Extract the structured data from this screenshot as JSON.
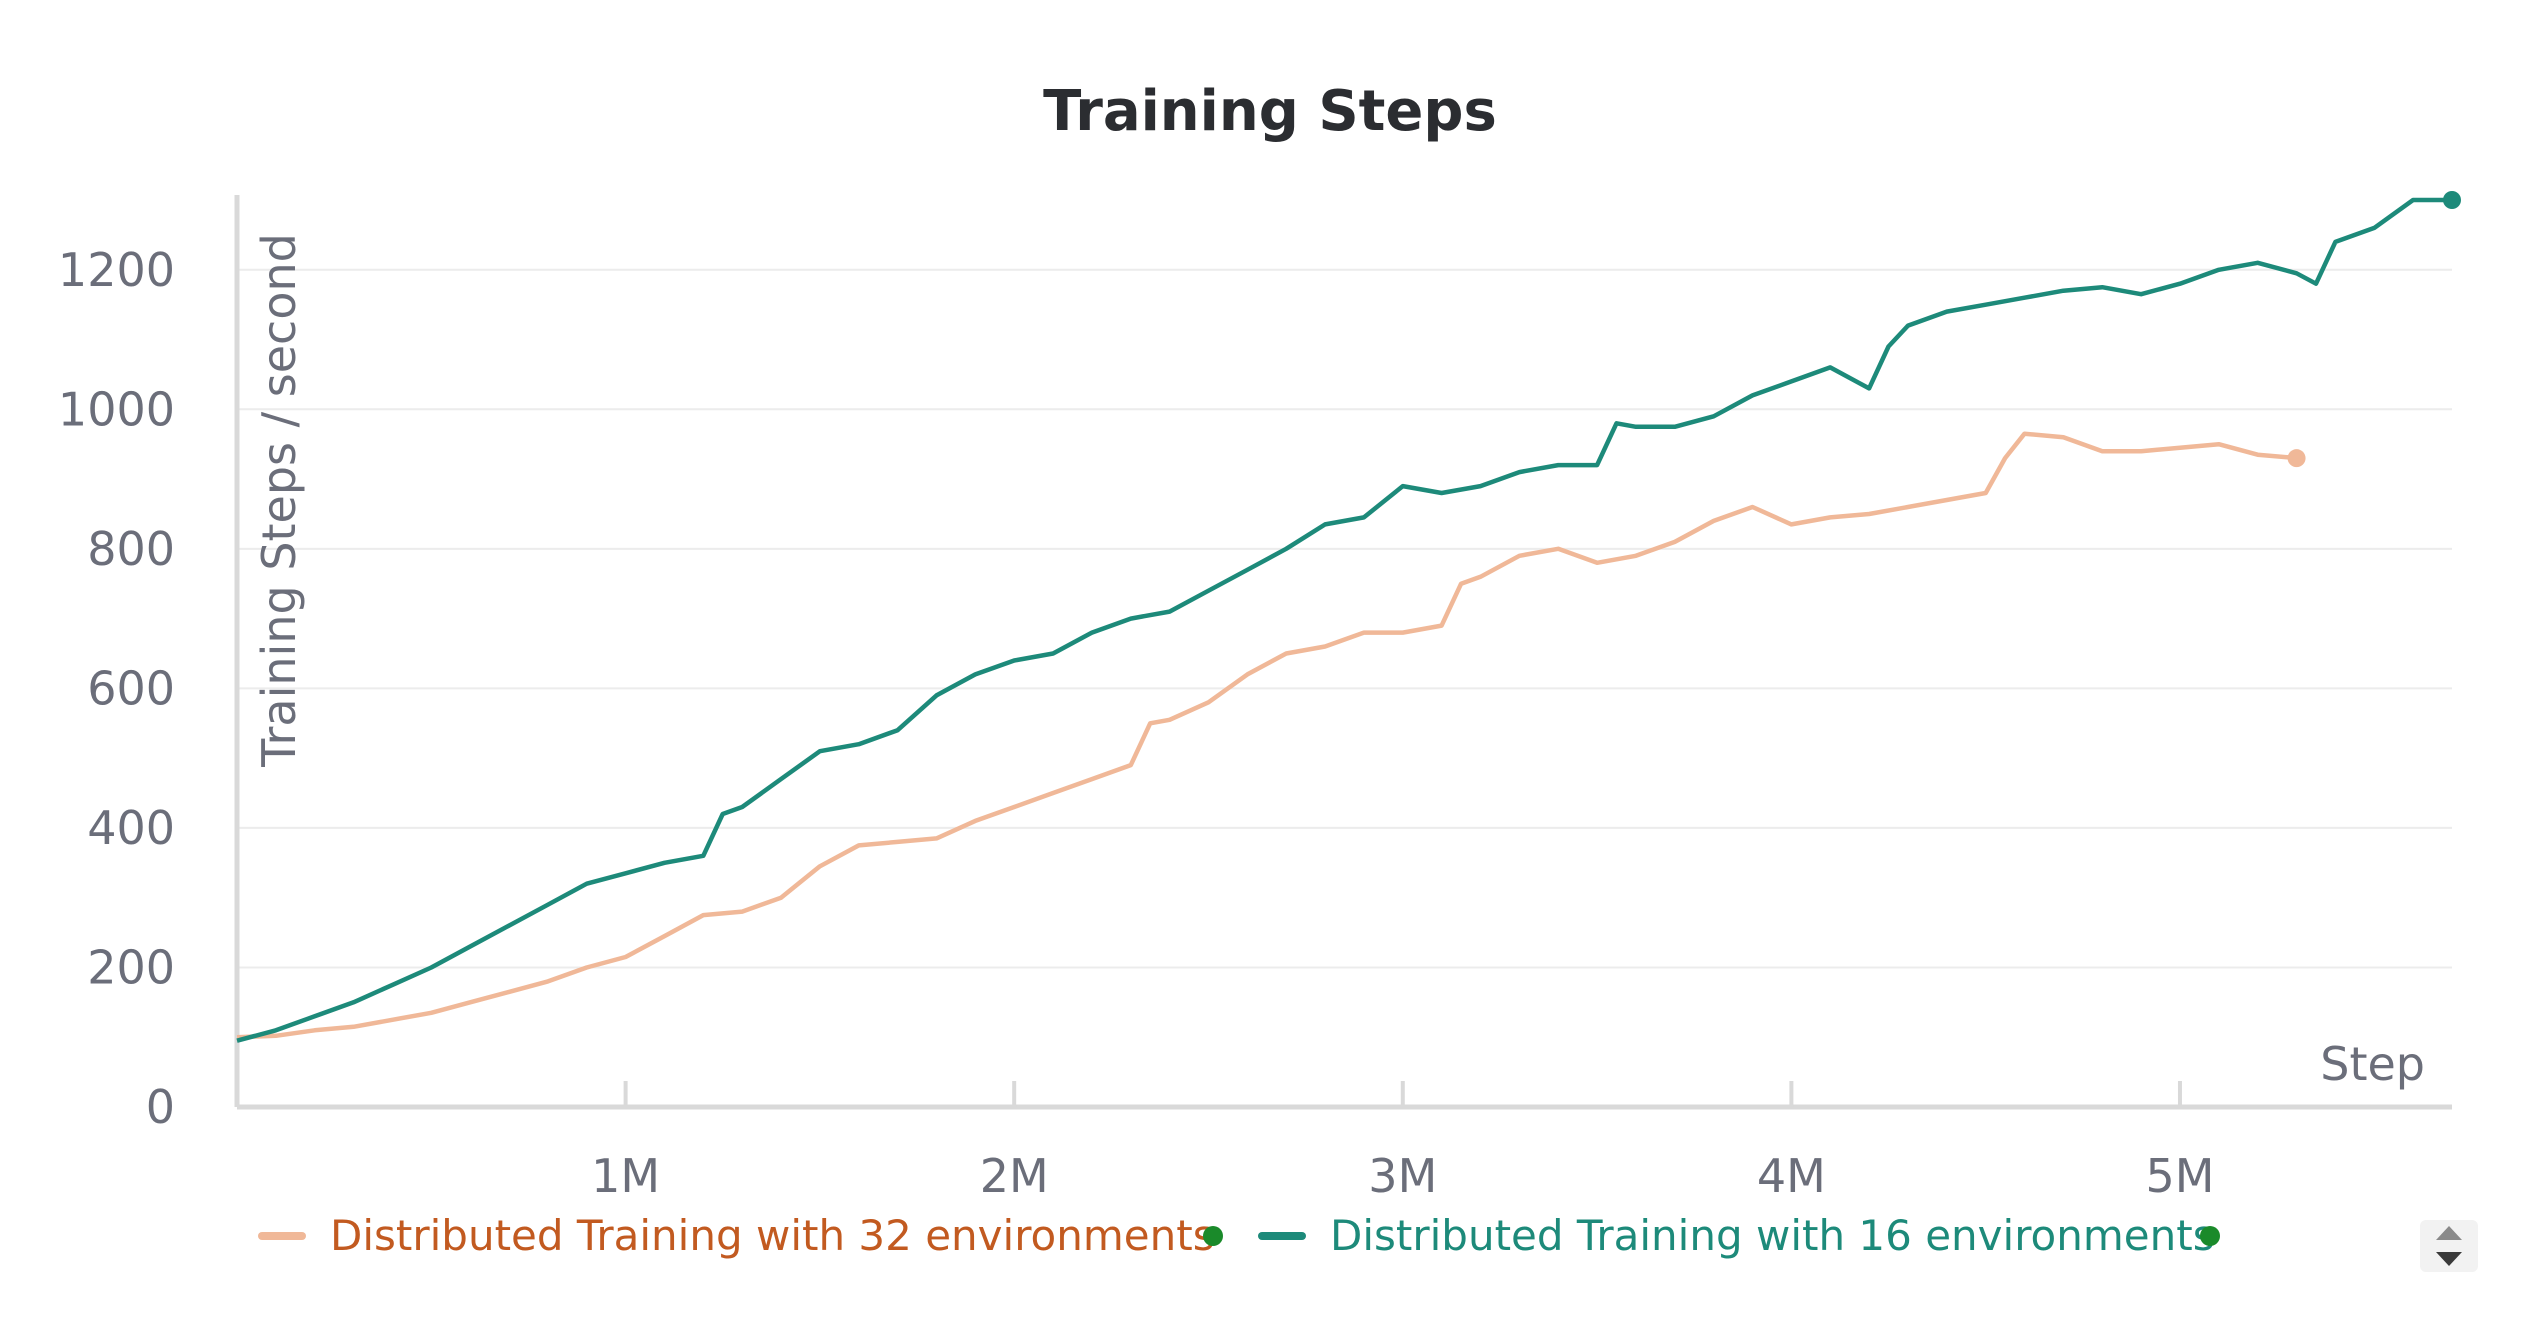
{
  "chart_data": {
    "type": "line",
    "title": "Training Steps",
    "xlabel": "Step",
    "ylabel": "Training Steps / second",
    "xlim": [
      0,
      5700000
    ],
    "ylim": [
      0,
      1300
    ],
    "x_ticks": [
      {
        "value": 1000000,
        "label": "1M"
      },
      {
        "value": 2000000,
        "label": "2M"
      },
      {
        "value": 3000000,
        "label": "3M"
      },
      {
        "value": 4000000,
        "label": "4M"
      },
      {
        "value": 5000000,
        "label": "5M"
      }
    ],
    "y_ticks": [
      {
        "value": 0,
        "label": "0"
      },
      {
        "value": 200,
        "label": "200"
      },
      {
        "value": 400,
        "label": "400"
      },
      {
        "value": 600,
        "label": "600"
      },
      {
        "value": 800,
        "label": "800"
      },
      {
        "value": 1000,
        "label": "1000"
      },
      {
        "value": 1200,
        "label": "1200"
      }
    ],
    "grid": true,
    "legend_position": "bottom",
    "series": [
      {
        "name": "Distributed Training with 32 environments",
        "color": "#f0b898",
        "legend_text_color": "#c25a20",
        "x": [
          0,
          100000,
          200000,
          300000,
          400000,
          500000,
          600000,
          700000,
          800000,
          900000,
          1000000,
          1100000,
          1200000,
          1300000,
          1400000,
          1500000,
          1600000,
          1700000,
          1800000,
          1900000,
          2000000,
          2100000,
          2200000,
          2300000,
          2350000,
          2400000,
          2500000,
          2600000,
          2700000,
          2800000,
          2900000,
          3000000,
          3100000,
          3150000,
          3200000,
          3300000,
          3400000,
          3500000,
          3600000,
          3700000,
          3800000,
          3900000,
          4000000,
          4100000,
          4200000,
          4300000,
          4400000,
          4500000,
          4550000,
          4600000,
          4700000,
          4800000,
          4900000,
          5000000,
          5100000,
          5200000,
          5300000
        ],
        "y": [
          100,
          102,
          110,
          115,
          125,
          135,
          150,
          165,
          180,
          200,
          215,
          245,
          275,
          280,
          300,
          345,
          375,
          380,
          385,
          410,
          430,
          450,
          470,
          490,
          550,
          555,
          580,
          620,
          650,
          660,
          680,
          680,
          690,
          750,
          760,
          790,
          800,
          780,
          790,
          810,
          840,
          860,
          835,
          845,
          850,
          860,
          870,
          880,
          930,
          965,
          960,
          940,
          940,
          945,
          950,
          935,
          930
        ]
      },
      {
        "name": "Distributed Training with 16 environments",
        "color": "#1d8a7a",
        "legend_text_color": "#1d8a7a",
        "x": [
          0,
          100000,
          200000,
          300000,
          400000,
          500000,
          600000,
          700000,
          800000,
          900000,
          1000000,
          1100000,
          1200000,
          1250000,
          1300000,
          1400000,
          1500000,
          1600000,
          1700000,
          1800000,
          1900000,
          2000000,
          2100000,
          2200000,
          2300000,
          2400000,
          2500000,
          2600000,
          2700000,
          2800000,
          2900000,
          3000000,
          3100000,
          3200000,
          3300000,
          3400000,
          3500000,
          3550000,
          3600000,
          3700000,
          3800000,
          3900000,
          4000000,
          4100000,
          4200000,
          4250000,
          4300000,
          4400000,
          4500000,
          4600000,
          4700000,
          4800000,
          4900000,
          5000000,
          5100000,
          5200000,
          5300000,
          5350000,
          5400000,
          5500000,
          5600000,
          5700000
        ],
        "y": [
          95,
          110,
          130,
          150,
          175,
          200,
          230,
          260,
          290,
          320,
          335,
          350,
          360,
          420,
          430,
          470,
          510,
          520,
          540,
          590,
          620,
          640,
          650,
          680,
          700,
          710,
          740,
          770,
          800,
          835,
          845,
          890,
          880,
          890,
          910,
          920,
          920,
          980,
          975,
          975,
          990,
          1020,
          1040,
          1060,
          1030,
          1090,
          1120,
          1140,
          1150,
          1160,
          1170,
          1175,
          1165,
          1180,
          1200,
          1210,
          1195,
          1180,
          1240,
          1260,
          1300,
          1300
        ]
      }
    ]
  }
}
